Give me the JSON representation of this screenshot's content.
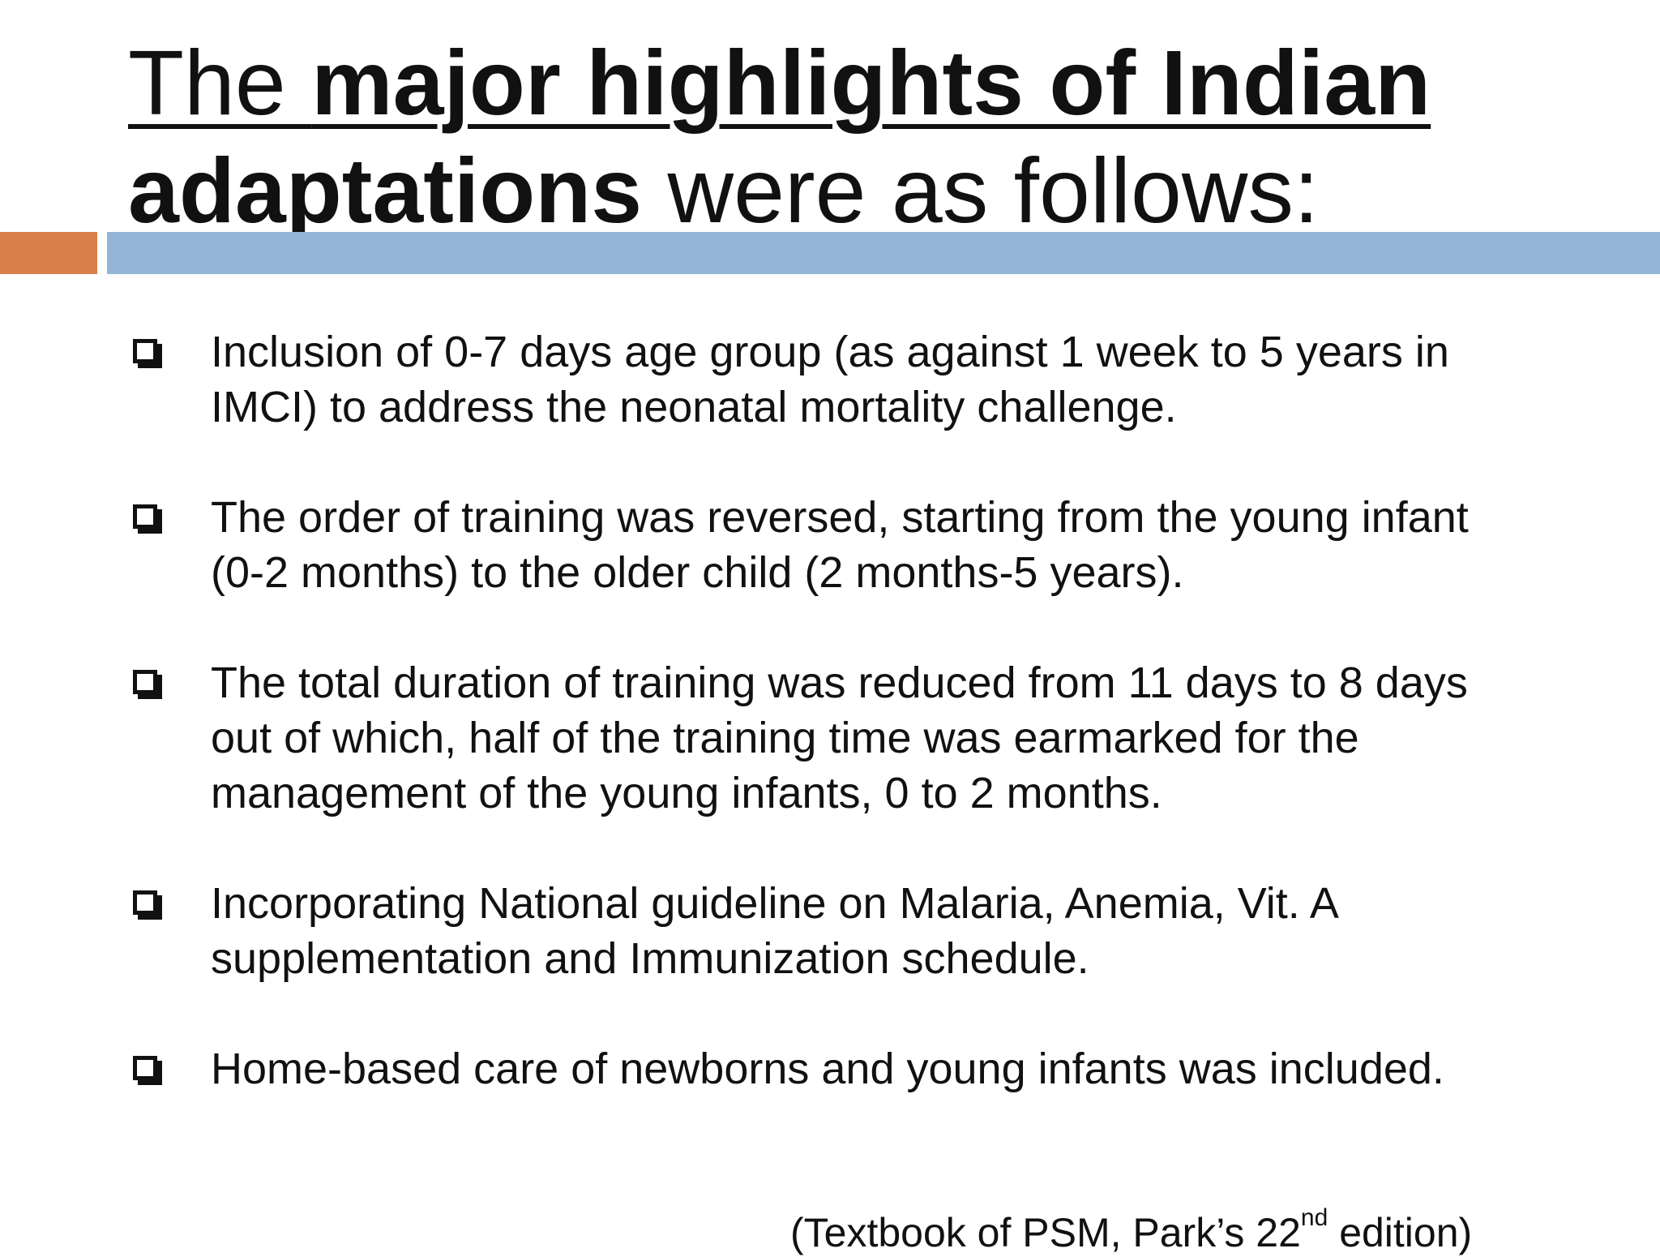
{
  "slide": {
    "title": {
      "part1": "The ",
      "part2_bold": "major highlights of Indian adaptations",
      "part3": " were as follows:"
    },
    "colors": {
      "accent_orange": "#d9804a",
      "accent_blue": "#94b6d6",
      "text": "#111111"
    },
    "bullet_icon": "checkbox-icon",
    "bullets": [
      {
        "text": "Inclusion of 0-7 days age group (as against 1 week to 5 years in IMCI) to address the neonatal mortality challenge."
      },
      {
        "text": " The order of training was reversed, starting from the young infant (0-2 months) to the older child (2 months-5 years)."
      },
      {
        "text": "The total duration of training was reduced from 11 days to 8 days out of which, half of the training time was earmarked for the management of the young infants, 0 to 2 months."
      },
      {
        "text": " Incorporating National guideline on Malaria,  Anemia, Vit. A supplementation and Immunization schedule."
      },
      {
        "text": "Home-based care of newborns and young infants was included."
      }
    ],
    "citation": {
      "before": "(Textbook of PSM, Park’s 22",
      "superscript": "nd",
      "after": " edition)"
    }
  }
}
